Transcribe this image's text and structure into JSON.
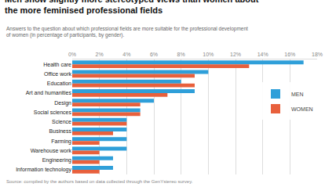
{
  "chart_data": {
    "type": "bar",
    "orientation": "horizontal",
    "title": "Men show slightly more stereotyped views than women about the more feminised professional fields",
    "subtitle": "Answers to the question about which professional fields are more suitable for the professional development of women (in percentage of participants, by gender).",
    "source": "Source: compiled by the authors based on data collected through the GenYstereo survey.",
    "categories": [
      "Health care",
      "Office work",
      "Education",
      "Art and humanities",
      "Design",
      "Social sciences",
      "Science",
      "Business",
      "Farming",
      "Warehouse work",
      "Engineering",
      "Information technology"
    ],
    "series": [
      {
        "name": "MEN",
        "color": "#2f9fd9",
        "values": [
          17,
          10,
          8,
          9,
          6,
          5,
          4,
          4,
          4,
          4,
          3,
          3
        ]
      },
      {
        "name": "WOMEN",
        "color": "#e8603c",
        "values": [
          13,
          9,
          9,
          7,
          5,
          5,
          4,
          3,
          2,
          2,
          2,
          2
        ]
      }
    ],
    "xlim": [
      0,
      18
    ],
    "xticks": [
      {
        "value": 0,
        "label": "0%"
      },
      {
        "value": 2,
        "label": "2%"
      },
      {
        "value": 4,
        "label": "4%"
      },
      {
        "value": 6,
        "label": "6%"
      },
      {
        "value": 8,
        "label": "8%"
      },
      {
        "value": 10,
        "label": "10%"
      },
      {
        "value": 12,
        "label": "12%"
      },
      {
        "value": 14,
        "label": "14%"
      },
      {
        "value": 16,
        "label": "16%"
      },
      {
        "value": 18,
        "label": "18%"
      }
    ],
    "grid": true,
    "legend": "upper right"
  }
}
